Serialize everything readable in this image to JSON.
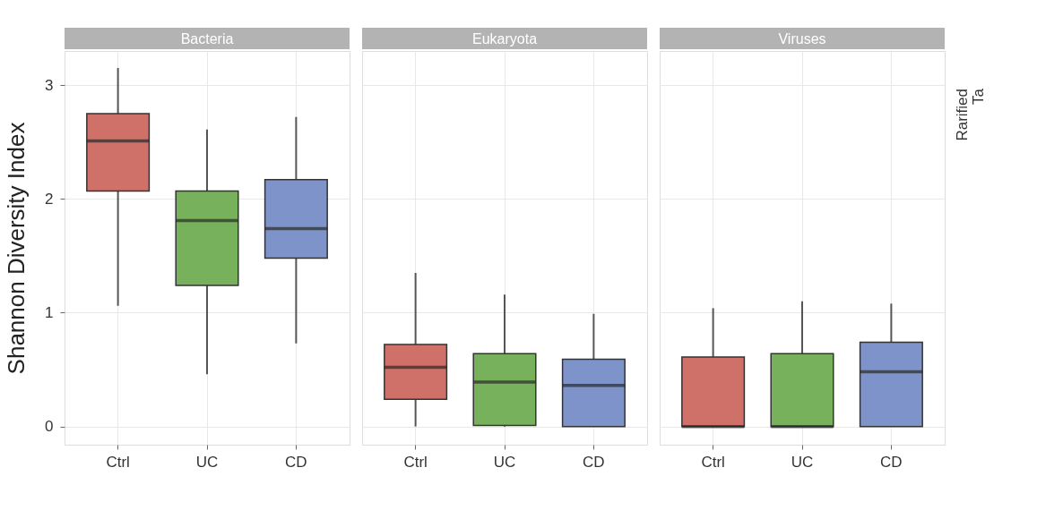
{
  "chart_data": [
    {
      "type": "box",
      "title": "Bacteria",
      "ylabel": "Shannon Diversity Index",
      "categories": [
        "Ctrl",
        "UC",
        "CD"
      ],
      "colors": [
        "#cf7168",
        "#78b15c",
        "#7d93c9"
      ],
      "ylim": [
        -0.16,
        3.3
      ],
      "yticks": [
        0,
        1,
        2,
        3
      ],
      "grid": true,
      "boxes": [
        {
          "low": 1.06,
          "q1": 2.07,
          "median": 2.51,
          "q3": 2.75,
          "high": 3.15
        },
        {
          "low": 0.46,
          "q1": 1.24,
          "median": 1.81,
          "q3": 2.07,
          "high": 2.61
        },
        {
          "low": 0.73,
          "q1": 1.48,
          "median": 1.74,
          "q3": 2.17,
          "high": 2.72
        }
      ]
    },
    {
      "type": "box",
      "title": "Eukaryota",
      "categories": [
        "Ctrl",
        "UC",
        "CD"
      ],
      "colors": [
        "#cf7168",
        "#78b15c",
        "#7d93c9"
      ],
      "ylim": [
        -0.16,
        3.3
      ],
      "yticks": [
        0,
        1,
        2,
        3
      ],
      "grid": true,
      "tick_labels": "x",
      "boxes": [
        {
          "low": 0,
          "q1": 0.24,
          "median": 0.52,
          "q3": 0.72,
          "high": 1.35
        },
        {
          "low": 0,
          "q1": 0.01,
          "median": 0.39,
          "q3": 0.64,
          "high": 1.16
        },
        {
          "low": 0,
          "q1": 0,
          "median": 0.36,
          "q3": 0.59,
          "high": 0.99
        }
      ]
    },
    {
      "type": "box",
      "title": "Viruses",
      "categories": [
        "Ctrl",
        "UC",
        "CD"
      ],
      "colors": [
        "#cf7168",
        "#78b15c",
        "#7d93c9"
      ],
      "ylim": [
        -0.16,
        3.3
      ],
      "yticks": [
        0,
        1,
        2,
        3
      ],
      "grid": true,
      "tick_labels": "x",
      "annotations": [
        "Rarified",
        "Ta"
      ],
      "boxes": [
        {
          "low": 0,
          "q1": 0,
          "median": 0,
          "q3": 0.61,
          "high": 1.04
        },
        {
          "low": 0,
          "q1": 0,
          "median": 0,
          "q3": 0.64,
          "high": 1.1
        },
        {
          "low": 0,
          "q1": 0,
          "median": 0.48,
          "q3": 0.74,
          "high": 1.08
        }
      ]
    }
  ]
}
